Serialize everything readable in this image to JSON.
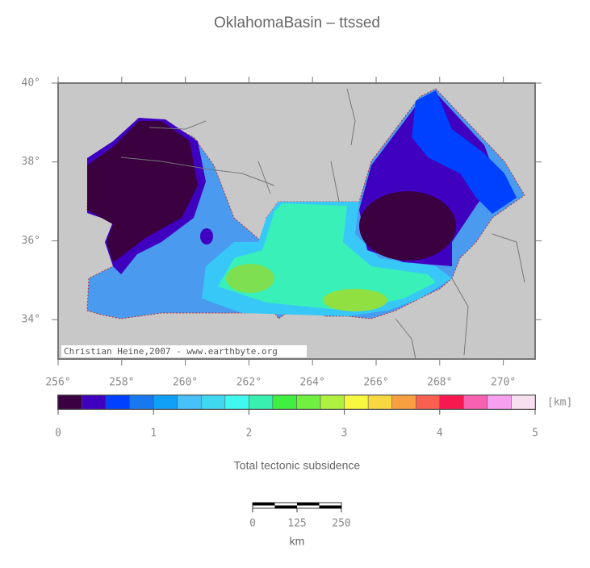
{
  "chart_data": {
    "type": "map",
    "title": "OklahomaBasin – ttssed",
    "xlim": [
      256,
      271
    ],
    "xticks": [
      {
        "value": 256,
        "label": "256°"
      },
      {
        "value": 258,
        "label": "258°"
      },
      {
        "value": 260,
        "label": "260°"
      },
      {
        "value": 262,
        "label": "262°"
      },
      {
        "value": 264,
        "label": "264°"
      },
      {
        "value": 266,
        "label": "266°"
      },
      {
        "value": 268,
        "label": "268°"
      },
      {
        "value": 270,
        "label": "270°"
      }
    ],
    "ylim": [
      33,
      40
    ],
    "yticks": [
      {
        "value": 34,
        "label": "34°"
      },
      {
        "value": 36,
        "label": "36°"
      },
      {
        "value": 38,
        "label": "38°"
      },
      {
        "value": 40,
        "label": "40°"
      }
    ],
    "credit": "Christian Heine,2007 - www.earthbyte.org",
    "colorbar": {
      "label": "Total tectonic subsidence",
      "unit": "[km]",
      "lim": [
        0,
        5
      ],
      "ticks": [
        0,
        1,
        2,
        3,
        4,
        5
      ],
      "colors": [
        "#3a0040",
        "#4000c0",
        "#0040ff",
        "#1878f0",
        "#10a0f8",
        "#48c0f8",
        "#40d8f0",
        "#40f8f0",
        "#38f0b0",
        "#40f040",
        "#70f040",
        "#b0f040",
        "#f8f840",
        "#f8d840",
        "#f8a040",
        "#f86050",
        "#f81850",
        "#f860b0",
        "#f8a0f0",
        "#f8e0f0"
      ]
    },
    "scale_bar": {
      "ticks": [
        0,
        125,
        250
      ],
      "unit": "km"
    }
  }
}
